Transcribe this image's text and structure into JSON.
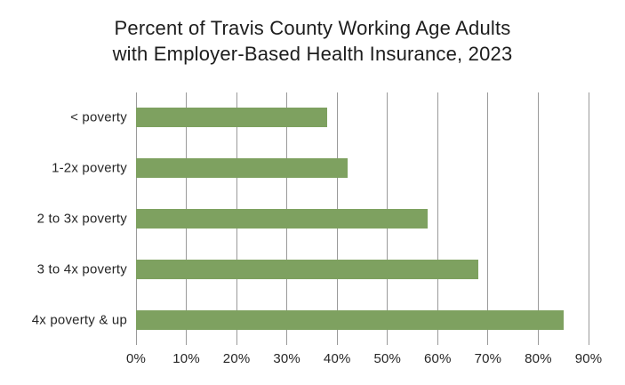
{
  "page": {
    "background_color": "#ffffff"
  },
  "chart_data": {
    "type": "bar",
    "orientation": "horizontal",
    "title": "Percent of Travis County Working Age Adults with Employer-Based Health Insurance, 2023",
    "title_lines": [
      "Percent of Travis County Working Age Adults",
      "with Employer-Based Health Insurance, 2023"
    ],
    "categories": [
      "< poverty",
      "1-2x poverty",
      "2 to 3x poverty",
      "3 to 4x poverty",
      "4x poverty & up"
    ],
    "values": [
      38,
      42,
      58,
      68,
      85
    ],
    "value_unit": "%",
    "xlabel": "",
    "ylabel": "",
    "xlim": [
      0,
      90
    ],
    "x_tick_interval": 10,
    "x_tick_labels": [
      "0%",
      "10%",
      "20%",
      "30%",
      "40%",
      "50%",
      "60%",
      "70%",
      "80%",
      "90%"
    ],
    "grid": "vertical",
    "legend": "none",
    "colors": {
      "bar": "#7EA160",
      "gridline": "#9A9A9A",
      "text": "#262626",
      "title_text": "#1d1d1d"
    }
  }
}
